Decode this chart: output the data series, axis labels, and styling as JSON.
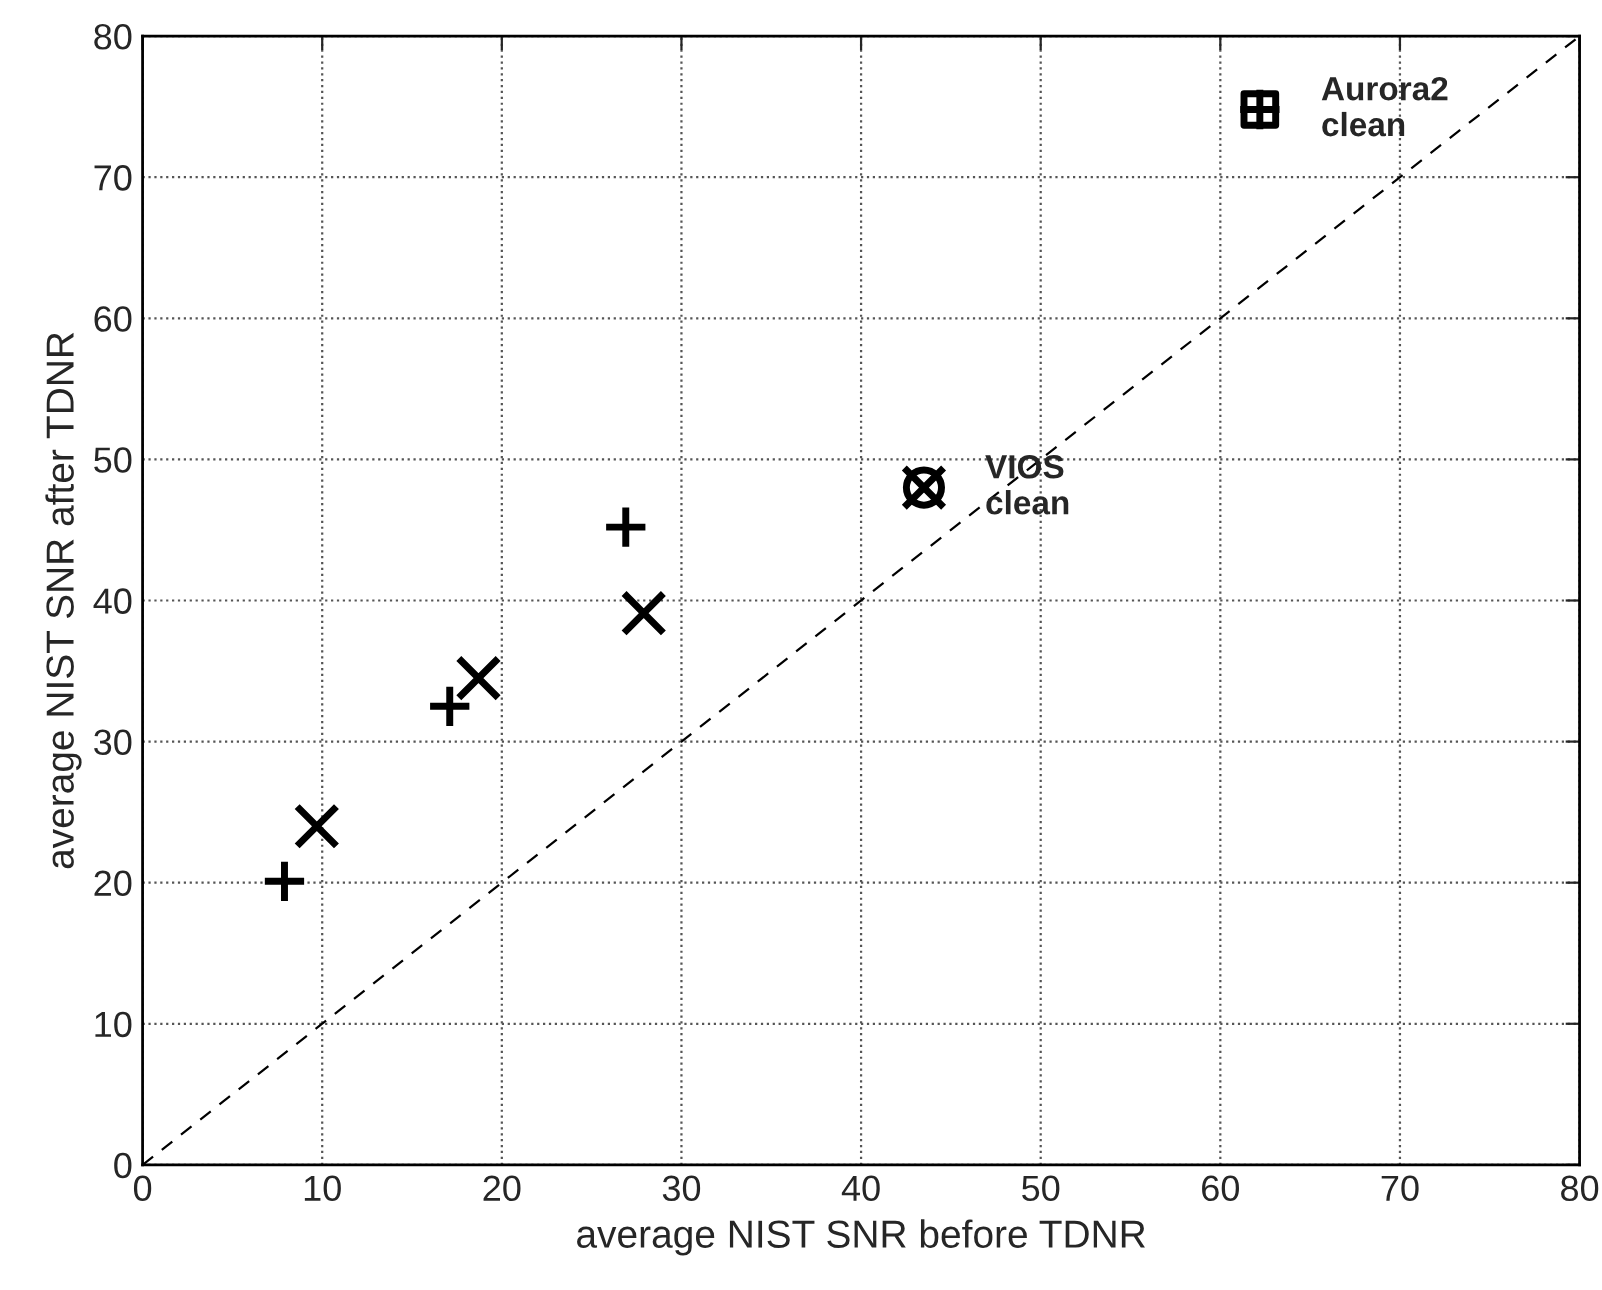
{
  "chart_data": {
    "type": "scatter",
    "xlabel": "average NIST SNR before TDNR",
    "ylabel": "average NIST SNR after TDNR",
    "xlim": [
      0,
      80
    ],
    "ylim": [
      0,
      80
    ],
    "xticks": [
      0,
      10,
      20,
      30,
      40,
      50,
      60,
      70,
      80
    ],
    "yticks": [
      0,
      10,
      20,
      30,
      40,
      50,
      60,
      70,
      80
    ],
    "grid": true,
    "series": [
      {
        "color": "#000000",
        "marker": "plus",
        "x": [
          7.9,
          17.1,
          26.9
        ],
        "values": [
          20.1,
          32.5,
          45.2
        ]
      },
      {
        "color": "#000000",
        "marker": "cross",
        "x": [
          9.7,
          18.7,
          27.9
        ],
        "values": [
          24.0,
          34.5,
          39.1
        ]
      },
      {
        "color": "#000000",
        "marker": "circle",
        "x": [
          43.5
        ],
        "values": [
          48.0
        ]
      },
      {
        "color": "#000000",
        "x": [
          62.2
        ],
        "values": [
          74.8
        ]
      },
      {
        "type": "line",
        "color": "#000000",
        "line_style": "dashed",
        "x": [
          0,
          80
        ],
        "values": [
          0,
          80
        ]
      }
    ],
    "annotations": [
      {
        "text": "VIOS\nclean",
        "x": 43.5,
        "y": 48.0
      },
      {
        "text": "Aurora2\nclean",
        "x": 62.2,
        "y": 74.8
      }
    ]
  }
}
